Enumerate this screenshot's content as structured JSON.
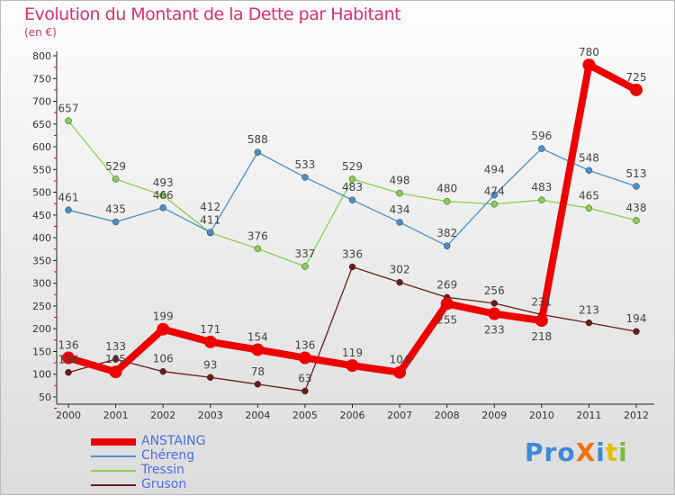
{
  "chart_data": {
    "type": "line",
    "title": "Evolution du Montant de la Dette par Habitant",
    "ylabel": "(en €)",
    "x": [
      "2000",
      "2001",
      "2002",
      "2003",
      "2004",
      "2005",
      "2006",
      "2007",
      "2008",
      "2009",
      "2010",
      "2011",
      "2012"
    ],
    "ylim": [
      50,
      800
    ],
    "yticks": [
      50,
      100,
      150,
      200,
      250,
      300,
      350,
      400,
      450,
      500,
      550,
      600,
      650,
      700,
      750,
      800
    ],
    "series": [
      {
        "name": "ANSTAING",
        "color": "#ee0000",
        "values": [
          136,
          105,
          199,
          171,
          154,
          136,
          119,
          104,
          255,
          233,
          218,
          780,
          725
        ]
      },
      {
        "name": "Chéreng",
        "color": "#4a90c8",
        "values": [
          461,
          435,
          466,
          412,
          588,
          533,
          483,
          434,
          382,
          494,
          596,
          548,
          513
        ]
      },
      {
        "name": "Tressin",
        "color": "#88d050",
        "values": [
          657,
          529,
          493,
          411,
          376,
          337,
          529,
          498,
          480,
          474,
          483,
          465,
          438
        ]
      },
      {
        "name": "Gruson",
        "color": "#6b1a1a",
        "values": [
          104,
          133,
          106,
          93,
          78,
          63,
          336,
          302,
          269,
          256,
          231,
          213,
          194
        ]
      }
    ]
  },
  "logo": "ProXiti"
}
